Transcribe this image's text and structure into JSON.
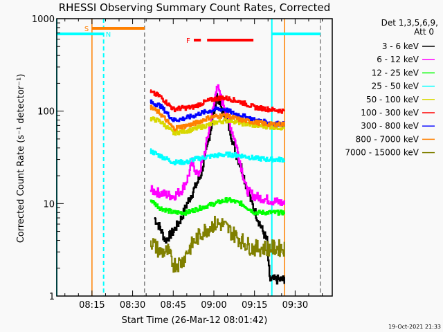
{
  "chart_data": {
    "type": "line",
    "title": "RHESSI Observing Summary Count Rates, Corrected",
    "xlabel": "Start Time (26-Mar-12 08:01:42)",
    "ylabel": "Corrected Count Rate (s⁻¹ detector⁻¹)",
    "yscale": "log",
    "ylim": [
      1,
      1000
    ],
    "xlim_minutes_after_0800": [
      2,
      103.7
    ],
    "yticks": [
      {
        "v": 1,
        "label": "1"
      },
      {
        "v": 10,
        "label": "10"
      },
      {
        "v": 100,
        "label": "100"
      },
      {
        "v": 1000,
        "label": "1000"
      }
    ],
    "xticks": [
      {
        "t": 15,
        "label": "08:15"
      },
      {
        "t": 30,
        "label": "08:30"
      },
      {
        "t": 45,
        "label": "08:45"
      },
      {
        "t": 60,
        "label": "09:00"
      },
      {
        "t": 75,
        "label": "09:15"
      },
      {
        "t": 90,
        "label": "09:30"
      }
    ],
    "legend_header": [
      "Det 1,3,5,6,9,",
      "Att 0"
    ],
    "legend_position": "right",
    "timestamp": "19-Oct-2021 21:33",
    "series": [
      {
        "name": "3 - 6 keV",
        "color": "#000000",
        "points": [
          [
            38,
            7
          ],
          [
            40,
            5.5
          ],
          [
            42,
            4
          ],
          [
            45,
            5
          ],
          [
            48,
            7
          ],
          [
            50,
            10
          ],
          [
            53,
            15
          ],
          [
            55,
            20
          ],
          [
            57,
            35
          ],
          [
            59,
            70
          ],
          [
            60,
            100
          ],
          [
            61,
            150
          ],
          [
            62,
            120
          ],
          [
            64,
            90
          ],
          [
            66,
            60
          ],
          [
            68,
            35
          ],
          [
            70,
            25
          ],
          [
            72,
            15
          ],
          [
            74,
            10
          ],
          [
            76,
            7
          ],
          [
            78,
            5
          ],
          [
            79.5,
            4
          ],
          [
            80.5,
            1.5
          ],
          [
            86,
            1.5
          ]
        ]
      },
      {
        "name": "6 - 12 keV",
        "color": "#ff00ff",
        "points": [
          [
            36.5,
            14
          ],
          [
            40,
            13
          ],
          [
            45,
            12
          ],
          [
            48,
            14
          ],
          [
            50,
            18
          ],
          [
            52,
            28
          ],
          [
            54,
            20
          ],
          [
            56,
            30
          ],
          [
            58,
            60
          ],
          [
            60,
            120
          ],
          [
            61,
            200
          ],
          [
            62,
            150
          ],
          [
            64,
            110
          ],
          [
            66,
            70
          ],
          [
            68,
            45
          ],
          [
            70,
            25
          ],
          [
            72,
            14
          ],
          [
            75,
            12
          ],
          [
            80,
            11
          ],
          [
            86,
            10
          ]
        ]
      },
      {
        "name": "12 - 25 keV",
        "color": "#00ff00",
        "points": [
          [
            36.5,
            11
          ],
          [
            40,
            9
          ],
          [
            45,
            8
          ],
          [
            50,
            8
          ],
          [
            55,
            9
          ],
          [
            60,
            10
          ],
          [
            65,
            11
          ],
          [
            70,
            10
          ],
          [
            75,
            8
          ],
          [
            80,
            8
          ],
          [
            86,
            8
          ]
        ]
      },
      {
        "name": "25 - 50 keV",
        "color": "#00ffff",
        "points": [
          [
            36.5,
            37
          ],
          [
            40,
            33
          ],
          [
            45,
            28
          ],
          [
            50,
            28
          ],
          [
            52,
            30
          ],
          [
            55,
            31
          ],
          [
            60,
            33
          ],
          [
            65,
            34
          ],
          [
            70,
            33
          ],
          [
            75,
            31
          ],
          [
            80,
            30
          ],
          [
            86,
            30
          ]
        ]
      },
      {
        "name": "50 - 100 keV",
        "color": "#d8d800",
        "points": [
          [
            36.5,
            83
          ],
          [
            40,
            78
          ],
          [
            45,
            58
          ],
          [
            48,
            60
          ],
          [
            52,
            63
          ],
          [
            55,
            67
          ],
          [
            58,
            71
          ],
          [
            60,
            75
          ],
          [
            63,
            78
          ],
          [
            66,
            80
          ],
          [
            70,
            74
          ],
          [
            75,
            70
          ],
          [
            80,
            68
          ],
          [
            86,
            66
          ]
        ]
      },
      {
        "name": "100 - 300 keV",
        "color": "#ff0000",
        "points": [
          [
            36.5,
            160
          ],
          [
            40,
            145
          ],
          [
            45,
            105
          ],
          [
            48,
            108
          ],
          [
            52,
            110
          ],
          [
            55,
            120
          ],
          [
            58,
            130
          ],
          [
            60,
            135
          ],
          [
            63,
            140
          ],
          [
            66,
            135
          ],
          [
            70,
            125
          ],
          [
            75,
            110
          ],
          [
            80,
            105
          ],
          [
            86,
            100
          ]
        ]
      },
      {
        "name": "300 - 800 keV",
        "color": "#0000ff",
        "points": [
          [
            36.5,
            125
          ],
          [
            40,
            115
          ],
          [
            45,
            80
          ],
          [
            48,
            82
          ],
          [
            52,
            88
          ],
          [
            55,
            95
          ],
          [
            58,
            100
          ],
          [
            61,
            105
          ],
          [
            64,
            105
          ],
          [
            67,
            95
          ],
          [
            70,
            90
          ],
          [
            75,
            80
          ],
          [
            80,
            75
          ],
          [
            86,
            72
          ]
        ]
      },
      {
        "name": "800 - 7000 keV",
        "color": "#ff8000",
        "points": [
          [
            36.5,
            110
          ],
          [
            40,
            95
          ],
          [
            45,
            65
          ],
          [
            48,
            68
          ],
          [
            52,
            72
          ],
          [
            55,
            78
          ],
          [
            58,
            85
          ],
          [
            61,
            88
          ],
          [
            64,
            90
          ],
          [
            67,
            85
          ],
          [
            70,
            80
          ],
          [
            75,
            76
          ],
          [
            80,
            72
          ],
          [
            86,
            72
          ]
        ]
      },
      {
        "name": "7000 - 15000 keV",
        "color": "#808000",
        "points": [
          [
            36.5,
            4
          ],
          [
            40,
            3
          ],
          [
            43,
            3
          ],
          [
            45,
            2.2
          ],
          [
            48,
            2.3
          ],
          [
            50,
            3
          ],
          [
            53,
            4
          ],
          [
            56,
            5
          ],
          [
            60,
            6
          ],
          [
            63,
            6
          ],
          [
            66,
            5
          ],
          [
            70,
            4
          ],
          [
            74,
            3.3
          ],
          [
            78,
            3.3
          ],
          [
            86,
            3.3
          ]
        ]
      }
    ],
    "flags": [
      {
        "label": "S",
        "color": "#ff8000",
        "start": 15,
        "end": 34.4,
        "level": 1
      },
      {
        "label": "N",
        "color": "#00ffff",
        "start": 2,
        "end": 19.3,
        "level": 2
      },
      {
        "label": "",
        "color": "#00ffff",
        "start": 81.6,
        "end": 99.3,
        "level": 2
      },
      {
        "label": "F",
        "color": "#ff0000",
        "start": 52.6,
        "end": 55.2,
        "level": 3
      },
      {
        "label": "",
        "color": "#ff0000",
        "start": 57.5,
        "end": 74.6,
        "level": 3
      }
    ],
    "vlines": [
      {
        "t": 15,
        "color": "#ff8000",
        "style": "solid"
      },
      {
        "t": 2,
        "color": "#00ffff",
        "style": "solid"
      },
      {
        "t": 19.3,
        "color": "#00ffff",
        "style": "dashed"
      },
      {
        "t": 34.4,
        "color": "#808080",
        "style": "dashed"
      },
      {
        "t": 81.4,
        "color": "#00ffff",
        "style": "solid"
      },
      {
        "t": 86.1,
        "color": "#ff8000",
        "style": "solid"
      },
      {
        "t": 99.3,
        "color": "#808080",
        "style": "dashed"
      }
    ]
  }
}
